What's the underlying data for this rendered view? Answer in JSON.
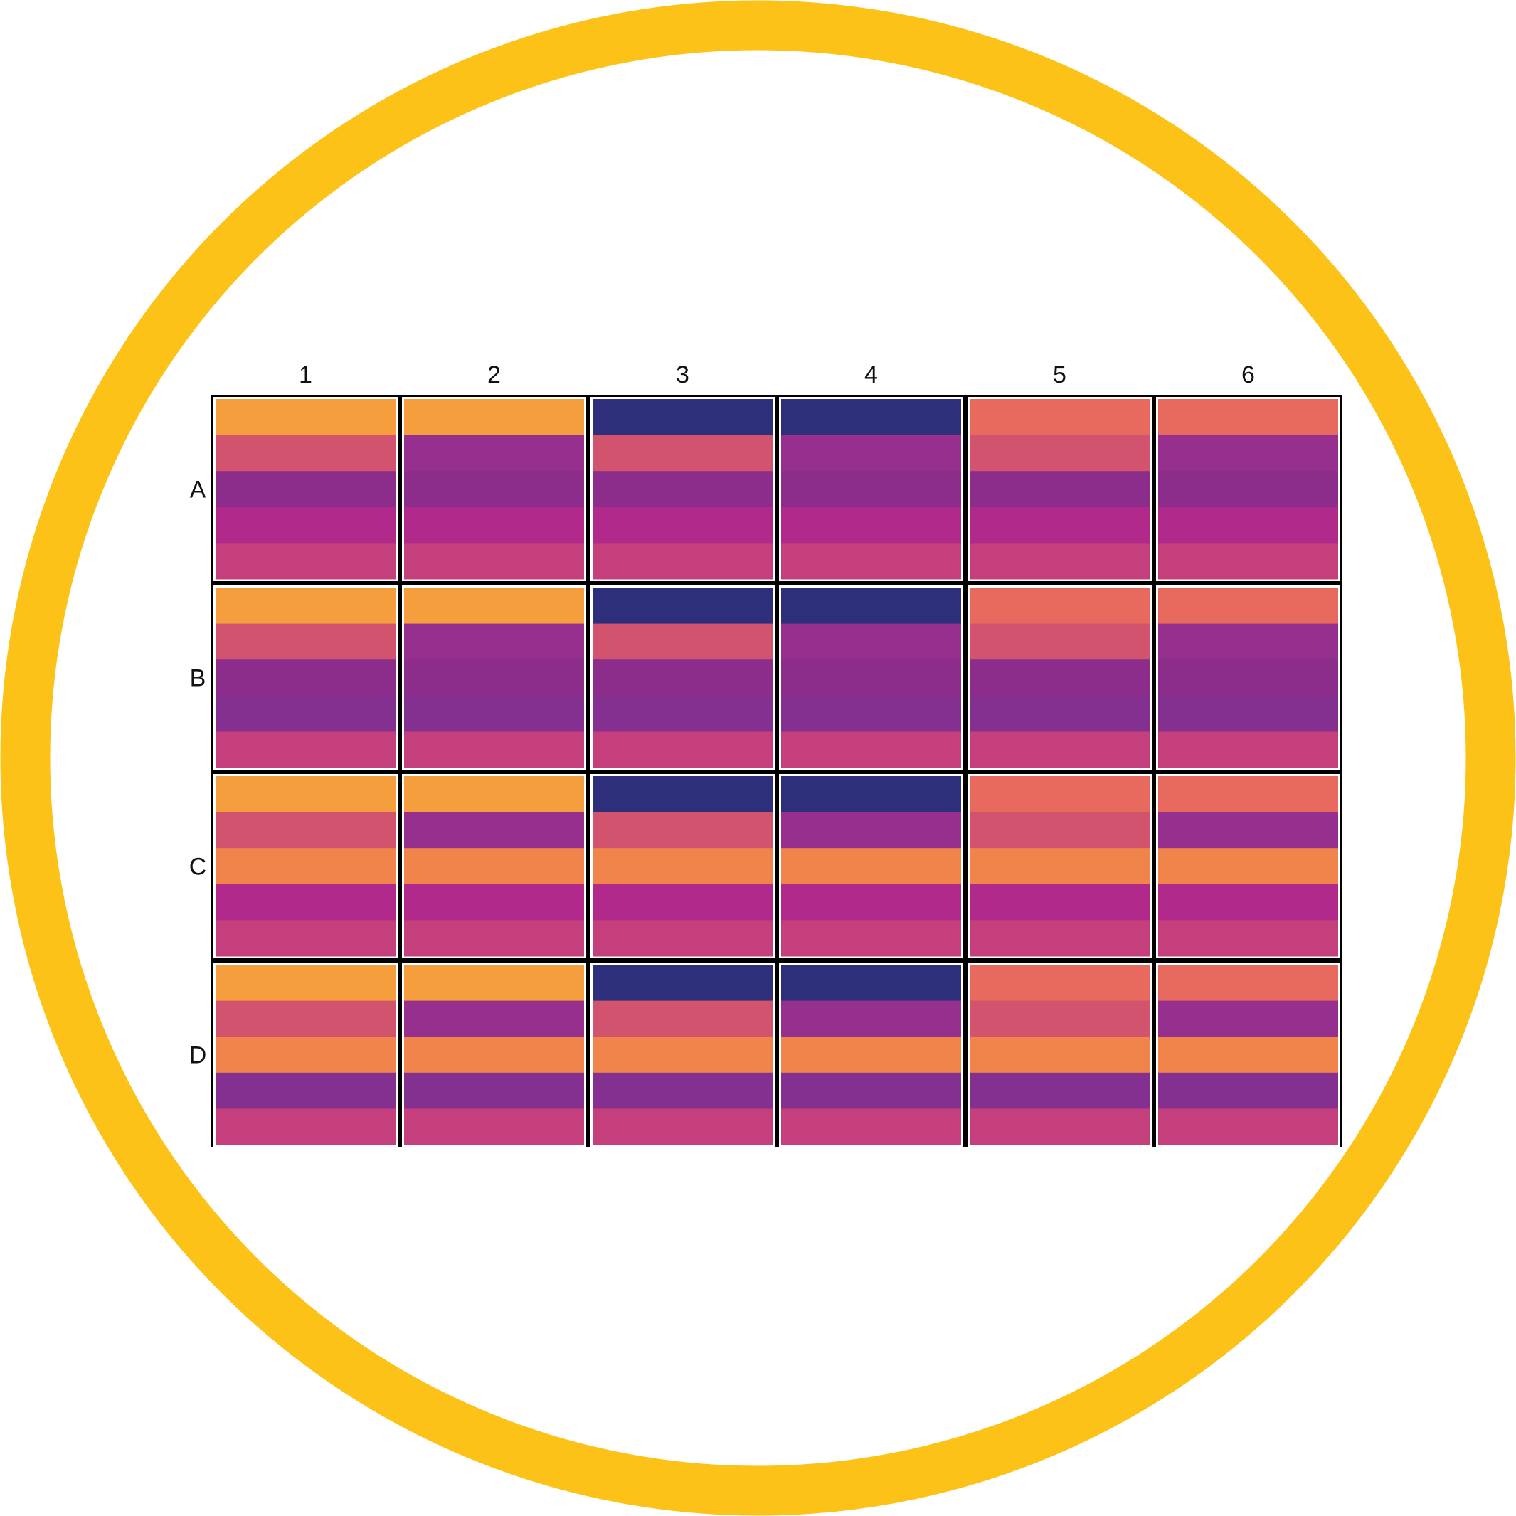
{
  "frame": {
    "ring_color": "#FCC217",
    "background_color": "#FFFFFF"
  },
  "plate": {
    "columns": [
      "1",
      "2",
      "3",
      "4",
      "5",
      "6"
    ],
    "rows": [
      "A",
      "B",
      "C",
      "D"
    ],
    "bands_per_well": 5,
    "palette": {
      "light_orange": "#F59E3D",
      "salmon": "#E86A5E",
      "navy": "#2E2F7B",
      "rose": "#D2536E",
      "violet": "#962F8D",
      "purple": "#8D2D8B",
      "deep_purple": "#833090",
      "magenta": "#B12A8B",
      "pink": "#C53F7D",
      "orange": "#F0844B"
    },
    "wells": {
      "A": [
        [
          "light_orange",
          "rose",
          "purple",
          "magenta",
          "pink"
        ],
        [
          "light_orange",
          "violet",
          "purple",
          "magenta",
          "pink"
        ],
        [
          "navy",
          "rose",
          "purple",
          "magenta",
          "pink"
        ],
        [
          "navy",
          "violet",
          "purple",
          "magenta",
          "pink"
        ],
        [
          "salmon",
          "rose",
          "purple",
          "magenta",
          "pink"
        ],
        [
          "salmon",
          "violet",
          "purple",
          "magenta",
          "pink"
        ]
      ],
      "B": [
        [
          "light_orange",
          "rose",
          "purple",
          "deep_purple",
          "pink"
        ],
        [
          "light_orange",
          "violet",
          "purple",
          "deep_purple",
          "pink"
        ],
        [
          "navy",
          "rose",
          "purple",
          "deep_purple",
          "pink"
        ],
        [
          "navy",
          "violet",
          "purple",
          "deep_purple",
          "pink"
        ],
        [
          "salmon",
          "rose",
          "purple",
          "deep_purple",
          "pink"
        ],
        [
          "salmon",
          "violet",
          "purple",
          "deep_purple",
          "pink"
        ]
      ],
      "C": [
        [
          "light_orange",
          "rose",
          "orange",
          "magenta",
          "pink"
        ],
        [
          "light_orange",
          "violet",
          "orange",
          "magenta",
          "pink"
        ],
        [
          "navy",
          "rose",
          "orange",
          "magenta",
          "pink"
        ],
        [
          "navy",
          "violet",
          "orange",
          "magenta",
          "pink"
        ],
        [
          "salmon",
          "rose",
          "orange",
          "magenta",
          "pink"
        ],
        [
          "salmon",
          "violet",
          "orange",
          "magenta",
          "pink"
        ]
      ],
      "D": [
        [
          "light_orange",
          "rose",
          "orange",
          "deep_purple",
          "pink"
        ],
        [
          "light_orange",
          "violet",
          "orange",
          "deep_purple",
          "pink"
        ],
        [
          "navy",
          "rose",
          "orange",
          "deep_purple",
          "pink"
        ],
        [
          "navy",
          "violet",
          "orange",
          "deep_purple",
          "pink"
        ],
        [
          "salmon",
          "rose",
          "orange",
          "deep_purple",
          "pink"
        ],
        [
          "salmon",
          "violet",
          "orange",
          "deep_purple",
          "pink"
        ]
      ]
    }
  }
}
